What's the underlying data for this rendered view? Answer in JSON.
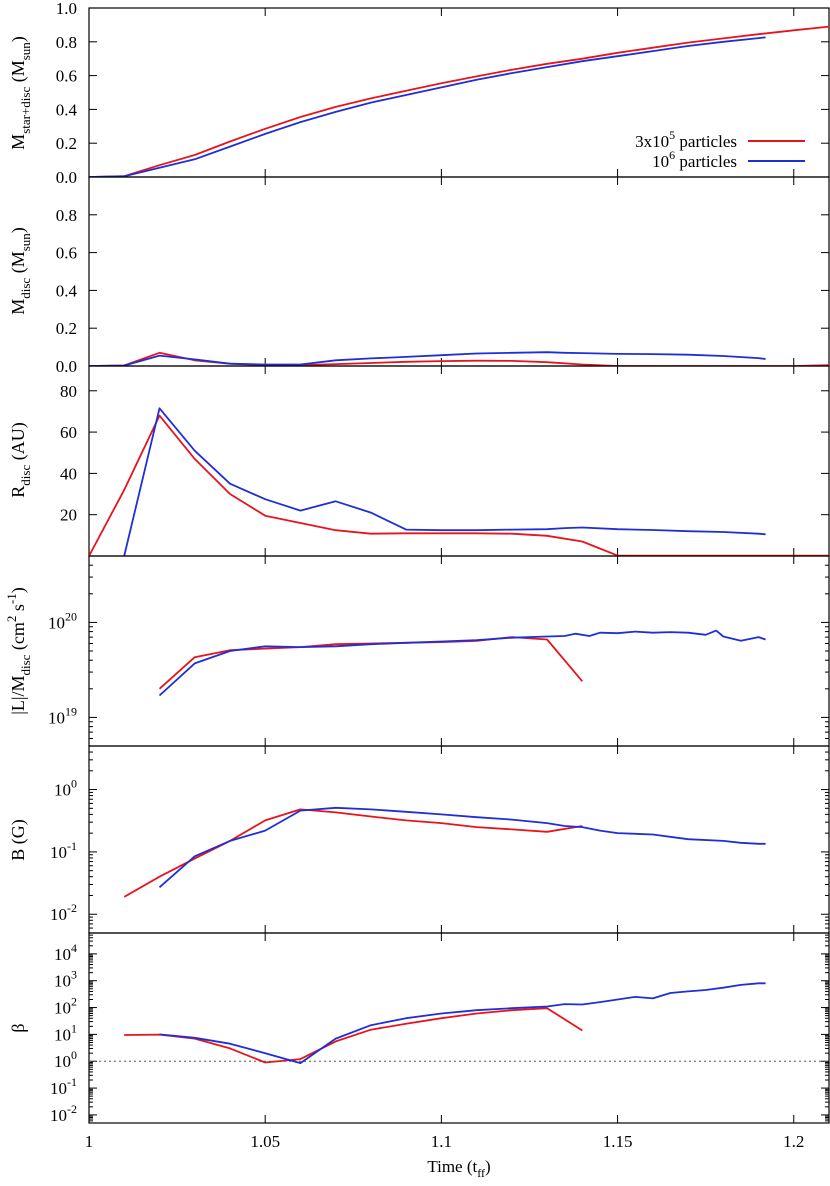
{
  "chart_data": [
    {
      "type": "line",
      "ylabel": {
        "main": "M",
        "sub": "star+disc",
        "rest": " (M",
        "sub2": "sun",
        "end": ")"
      },
      "ylim": [
        0,
        1.0
      ],
      "ytick_labels": [
        "0.0",
        "0.2",
        "0.4",
        "0.6",
        "0.8",
        "1.0"
      ],
      "ytick_values": [
        0.0,
        0.2,
        0.4,
        0.6,
        0.8,
        1.0
      ],
      "legend": {
        "placement": "bottom-right",
        "entries": [
          {
            "text": "3x10",
            "sup": "5",
            "rest": " particles",
            "color": "#e8141c"
          },
          {
            "text": "10",
            "sup": "6",
            "rest": " particles",
            "color": "#1f2fd6"
          }
        ]
      },
      "series": [
        {
          "color": "#e8141c",
          "x": [
            1.0,
            1.01,
            1.02,
            1.03,
            1.04,
            1.05,
            1.06,
            1.07,
            1.08,
            1.09,
            1.1,
            1.11,
            1.12,
            1.13,
            1.14,
            1.15,
            1.16,
            1.17,
            1.18,
            1.19,
            1.2,
            1.21
          ],
          "y": [
            0.0,
            0.005,
            0.07,
            0.13,
            0.21,
            0.285,
            0.355,
            0.415,
            0.465,
            0.51,
            0.555,
            0.595,
            0.635,
            0.67,
            0.7,
            0.735,
            0.765,
            0.795,
            0.82,
            0.845,
            0.868,
            0.89
          ]
        },
        {
          "color": "#1f2fd6",
          "x": [
            1.0,
            1.01,
            1.02,
            1.03,
            1.04,
            1.05,
            1.06,
            1.07,
            1.08,
            1.09,
            1.1,
            1.11,
            1.12,
            1.13,
            1.14,
            1.15,
            1.16,
            1.17,
            1.18,
            1.19,
            1.192
          ],
          "y": [
            0.0,
            0.004,
            0.055,
            0.105,
            0.18,
            0.255,
            0.325,
            0.385,
            0.44,
            0.485,
            0.53,
            0.575,
            0.615,
            0.65,
            0.685,
            0.715,
            0.745,
            0.775,
            0.8,
            0.822,
            0.826
          ]
        }
      ]
    },
    {
      "type": "line",
      "ylabel": {
        "main": "M",
        "sub": "disc",
        "rest": " (M",
        "sub2": "sun",
        "end": ")"
      },
      "ylim": [
        0,
        1.0
      ],
      "ytick_labels": [
        "0.0",
        "0.2",
        "0.4",
        "0.6",
        "0.8"
      ],
      "ytick_values": [
        0.0,
        0.2,
        0.4,
        0.6,
        0.8
      ],
      "series": [
        {
          "color": "#e8141c",
          "x": [
            1.0,
            1.01,
            1.02,
            1.03,
            1.04,
            1.05,
            1.06,
            1.07,
            1.08,
            1.09,
            1.1,
            1.11,
            1.12,
            1.13,
            1.14,
            1.15,
            1.16,
            1.17,
            1.18,
            1.19,
            1.2,
            1.21
          ],
          "y": [
            0.0,
            0.003,
            0.07,
            0.03,
            0.012,
            0.005,
            0.004,
            0.01,
            0.016,
            0.022,
            0.026,
            0.028,
            0.027,
            0.02,
            0.008,
            0.0,
            0.0,
            0.0,
            0.0,
            0.0,
            0.0,
            0.005
          ]
        },
        {
          "color": "#1f2fd6",
          "x": [
            1.0,
            1.01,
            1.02,
            1.03,
            1.04,
            1.05,
            1.06,
            1.07,
            1.08,
            1.09,
            1.1,
            1.11,
            1.12,
            1.13,
            1.135,
            1.14,
            1.15,
            1.16,
            1.17,
            1.18,
            1.19,
            1.192
          ],
          "y": [
            0.0,
            0.002,
            0.055,
            0.035,
            0.012,
            0.008,
            0.008,
            0.03,
            0.04,
            0.048,
            0.057,
            0.066,
            0.07,
            0.073,
            0.07,
            0.068,
            0.064,
            0.063,
            0.06,
            0.053,
            0.042,
            0.037
          ]
        }
      ]
    },
    {
      "type": "line",
      "ylabel": {
        "main": "R",
        "sub": "disc",
        "rest": " (AU)",
        "sub2": "",
        "end": ""
      },
      "ylim": [
        0,
        92
      ],
      "ytick_labels": [
        "20",
        "40",
        "60",
        "80"
      ],
      "ytick_values": [
        20,
        40,
        60,
        80
      ],
      "series": [
        {
          "color": "#e8141c",
          "x": [
            1.0,
            1.01,
            1.02,
            1.03,
            1.04,
            1.05,
            1.06,
            1.07,
            1.08,
            1.09,
            1.1,
            1.11,
            1.12,
            1.13,
            1.14,
            1.15,
            1.16,
            1.17,
            1.18,
            1.19,
            1.2,
            1.21
          ],
          "y": [
            0,
            32,
            68,
            47,
            30,
            19.5,
            16,
            12.5,
            10.8,
            11,
            11,
            11,
            10.8,
            9.8,
            7,
            0.2,
            0.2,
            0.2,
            0.2,
            0.2,
            0.2,
            0.2
          ]
        },
        {
          "color": "#1f2fd6",
          "x": [
            1.01,
            1.02,
            1.03,
            1.04,
            1.05,
            1.06,
            1.07,
            1.08,
            1.09,
            1.1,
            1.11,
            1.12,
            1.13,
            1.135,
            1.14,
            1.15,
            1.16,
            1.17,
            1.18,
            1.19,
            1.192
          ],
          "y": [
            0,
            71.5,
            51,
            35,
            27.5,
            22,
            26.5,
            21,
            12.8,
            12.5,
            12.5,
            12.8,
            13,
            13.5,
            13.8,
            13,
            12.6,
            12,
            11.6,
            10.8,
            10.5
          ]
        }
      ]
    },
    {
      "type": "line",
      "log_y": true,
      "ylabel": {
        "main": "|L|/M",
        "sub": "disc",
        "rest": " (cm",
        "sup": "2",
        "rest2": " s",
        "sup2": "-1",
        "end": ")"
      },
      "ylim": [
        5e+18,
        5e+20
      ],
      "ytick_labels": [
        {
          "base": "10",
          "exp": "19"
        },
        {
          "base": "10",
          "exp": "20"
        }
      ],
      "ytick_values": [
        1e+19,
        1e+20
      ],
      "series": [
        {
          "color": "#e8141c",
          "x": [
            1.02,
            1.03,
            1.04,
            1.05,
            1.06,
            1.07,
            1.08,
            1.09,
            1.1,
            1.11,
            1.12,
            1.13,
            1.14
          ],
          "y": [
            2e+19,
            4.3e+19,
            5.1e+19,
            5.3e+19,
            5.5e+19,
            5.9e+19,
            6e+19,
            6.1e+19,
            6.2e+19,
            6.4e+19,
            7e+19,
            6.6e+19,
            2.4e+19
          ]
        },
        {
          "color": "#1f2fd6",
          "x": [
            1.02,
            1.03,
            1.04,
            1.05,
            1.06,
            1.07,
            1.08,
            1.09,
            1.1,
            1.11,
            1.12,
            1.13,
            1.135,
            1.138,
            1.142,
            1.145,
            1.15,
            1.155,
            1.16,
            1.165,
            1.17,
            1.175,
            1.178,
            1.18,
            1.185,
            1.19,
            1.192
          ],
          "y": [
            1.7e+19,
            3.7e+19,
            5e+19,
            5.6e+19,
            5.5e+19,
            5.6e+19,
            5.9e+19,
            6.1e+19,
            6.3e+19,
            6.5e+19,
            6.9e+19,
            7.1e+19,
            7.2e+19,
            7.6e+19,
            7.2e+19,
            7.8e+19,
            7.7e+19,
            8e+19,
            7.8e+19,
            7.9e+19,
            7.8e+19,
            7.4e+19,
            8.2e+19,
            7.1e+19,
            6.4e+19,
            7e+19,
            6.6e+19
          ]
        }
      ]
    },
    {
      "type": "line",
      "log_y": true,
      "ylabel": {
        "main": "B (G)",
        "sub": "",
        "rest": "",
        "sub2": "",
        "end": ""
      },
      "ylim": [
        0.005,
        5
      ],
      "ytick_labels": [
        {
          "base": "10",
          "exp": "-2"
        },
        {
          "base": "10",
          "exp": "-1"
        },
        {
          "base": "10",
          "exp": "0"
        }
      ],
      "ytick_values": [
        0.01,
        0.1,
        1
      ],
      "series": [
        {
          "color": "#e8141c",
          "x": [
            1.01,
            1.02,
            1.03,
            1.04,
            1.05,
            1.06,
            1.07,
            1.08,
            1.09,
            1.1,
            1.11,
            1.12,
            1.13,
            1.14
          ],
          "y": [
            0.019,
            0.04,
            0.078,
            0.15,
            0.32,
            0.48,
            0.43,
            0.37,
            0.32,
            0.29,
            0.25,
            0.23,
            0.21,
            0.26
          ]
        },
        {
          "color": "#1f2fd6",
          "x": [
            1.02,
            1.03,
            1.04,
            1.05,
            1.06,
            1.07,
            1.08,
            1.09,
            1.1,
            1.11,
            1.12,
            1.13,
            1.135,
            1.14,
            1.145,
            1.15,
            1.16,
            1.17,
            1.18,
            1.185,
            1.19,
            1.192
          ],
          "y": [
            0.027,
            0.085,
            0.15,
            0.22,
            0.46,
            0.51,
            0.48,
            0.44,
            0.4,
            0.36,
            0.33,
            0.29,
            0.26,
            0.25,
            0.22,
            0.2,
            0.19,
            0.16,
            0.15,
            0.14,
            0.135,
            0.135
          ]
        }
      ]
    },
    {
      "type": "line",
      "log_y": true,
      "ylabel": {
        "main": "β",
        "sub": "",
        "rest": "",
        "sub2": "",
        "end": ""
      },
      "ylim": [
        0.005,
        60000
      ],
      "ytick_labels": [
        {
          "base": "10",
          "exp": "-2"
        },
        {
          "base": "10",
          "exp": "-1"
        },
        {
          "base": "10",
          "exp": "0"
        },
        {
          "base": "10",
          "exp": "1"
        },
        {
          "base": "10",
          "exp": "2"
        },
        {
          "base": "10",
          "exp": "3"
        },
        {
          "base": "10",
          "exp": "4"
        }
      ],
      "ytick_values": [
        0.01,
        0.1,
        1,
        10,
        100,
        1000,
        10000
      ],
      "reference_line": 1.0,
      "series": [
        {
          "color": "#e8141c",
          "x": [
            1.01,
            1.02,
            1.03,
            1.04,
            1.05,
            1.06,
            1.07,
            1.08,
            1.09,
            1.1,
            1.11,
            1.12,
            1.13,
            1.14
          ],
          "y": [
            9.5,
            9.8,
            7,
            3,
            0.9,
            1.2,
            5.5,
            15,
            25,
            40,
            60,
            80,
            95,
            14
          ]
        },
        {
          "color": "#1f2fd6",
          "x": [
            1.02,
            1.03,
            1.04,
            1.05,
            1.06,
            1.07,
            1.08,
            1.09,
            1.1,
            1.11,
            1.12,
            1.13,
            1.135,
            1.14,
            1.145,
            1.15,
            1.155,
            1.16,
            1.165,
            1.17,
            1.175,
            1.18,
            1.185,
            1.19,
            1.192
          ],
          "y": [
            10,
            7.5,
            4.5,
            2,
            0.85,
            7,
            22,
            40,
            60,
            80,
            95,
            110,
            135,
            130,
            160,
            200,
            250,
            220,
            350,
            400,
            450,
            550,
            700,
            800,
            800
          ]
        }
      ]
    }
  ],
  "xaxis": {
    "xlim": [
      1.0,
      1.21
    ],
    "tick_values": [
      1.0,
      1.05,
      1.1,
      1.15,
      1.2
    ],
    "tick_labels": [
      "1",
      "1.05",
      "1.1",
      "1.15",
      "1.2"
    ],
    "label_main": "Time (t",
    "label_sub": "ff",
    "label_end": ")"
  }
}
